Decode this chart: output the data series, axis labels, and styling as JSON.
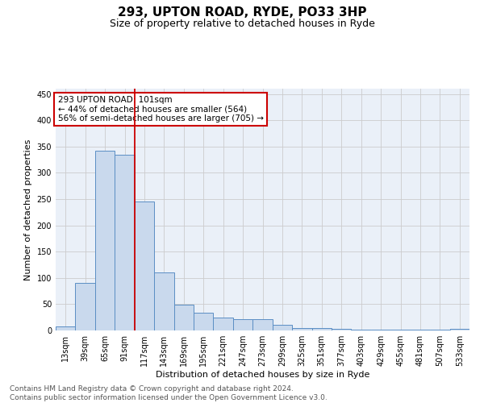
{
  "title1": "293, UPTON ROAD, RYDE, PO33 3HP",
  "title2": "Size of property relative to detached houses in Ryde",
  "xlabel": "Distribution of detached houses by size in Ryde",
  "ylabel": "Number of detached properties",
  "footer1": "Contains HM Land Registry data © Crown copyright and database right 2024.",
  "footer2": "Contains public sector information licensed under the Open Government Licence v3.0.",
  "bin_labels": [
    "13sqm",
    "39sqm",
    "65sqm",
    "91sqm",
    "117sqm",
    "143sqm",
    "169sqm",
    "195sqm",
    "221sqm",
    "247sqm",
    "273sqm",
    "299sqm",
    "325sqm",
    "351sqm",
    "377sqm",
    "403sqm",
    "429sqm",
    "455sqm",
    "481sqm",
    "507sqm",
    "533sqm"
  ],
  "bar_heights": [
    7,
    90,
    342,
    335,
    246,
    110,
    49,
    33,
    25,
    21,
    21,
    10,
    5,
    4,
    3,
    2,
    1,
    1,
    1,
    1,
    3
  ],
  "bar_color": "#c9d9ed",
  "bar_edge_color": "#5b8ec4",
  "vline_x": 3.5,
  "vline_color": "#cc0000",
  "annotation_text": "293 UPTON ROAD: 101sqm\n← 44% of detached houses are smaller (564)\n56% of semi-detached houses are larger (705) →",
  "annotation_box_edgecolor": "#cc0000",
  "annotation_fontsize": 7.5,
  "ylim": [
    0,
    460
  ],
  "yticks": [
    0,
    50,
    100,
    150,
    200,
    250,
    300,
    350,
    400,
    450
  ],
  "grid_color": "#cccccc",
  "bg_color": "#eaf0f8",
  "title1_fontsize": 11,
  "title2_fontsize": 9,
  "axis_label_fontsize": 8,
  "tick_fontsize": 7,
  "footer_fontsize": 6.5
}
